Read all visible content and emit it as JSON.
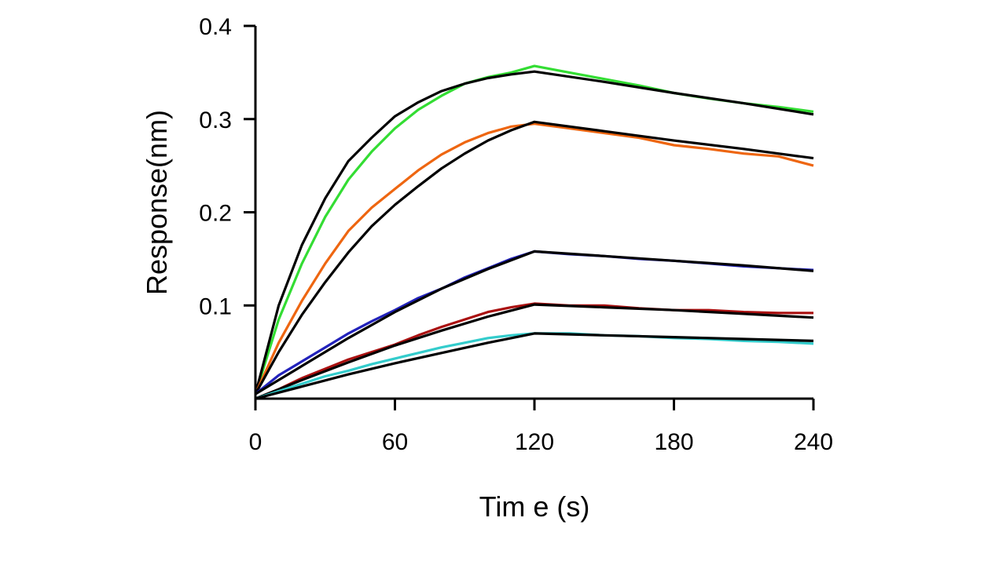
{
  "chart_data": {
    "type": "line",
    "xlabel": "Tim e (s)",
    "ylabel": "Response(nm)",
    "xlim": [
      0,
      240
    ],
    "ylim": [
      0,
      0.4
    ],
    "x_ticks": [
      0,
      60,
      120,
      180,
      240
    ],
    "x_tick_labels": [
      "0",
      "60",
      "120",
      "180",
      "240"
    ],
    "y_ticks": [
      0.1,
      0.2,
      0.3,
      0.4
    ],
    "y_tick_labels": [
      "0.1",
      "0.2",
      "0.3",
      "0.4"
    ],
    "grid": false,
    "series": [
      {
        "color": "#33dd33",
        "x": [
          0,
          10,
          20,
          30,
          40,
          50,
          60,
          70,
          80,
          90,
          100,
          110,
          120,
          135,
          150,
          165,
          180,
          195,
          210,
          225,
          240
        ],
        "values": [
          0.005,
          0.085,
          0.145,
          0.195,
          0.235,
          0.265,
          0.29,
          0.31,
          0.325,
          0.338,
          0.345,
          0.35,
          0.357,
          0.35,
          0.343,
          0.336,
          0.328,
          0.322,
          0.317,
          0.313,
          0.308
        ],
        "fit": {
          "x": [
            0,
            10,
            20,
            30,
            40,
            50,
            60,
            70,
            80,
            90,
            100,
            110,
            120,
            150,
            180,
            210,
            240
          ],
          "values": [
            0.005,
            0.1,
            0.165,
            0.215,
            0.255,
            0.28,
            0.303,
            0.318,
            0.33,
            0.338,
            0.344,
            0.348,
            0.351,
            0.34,
            0.328,
            0.317,
            0.305
          ]
        }
      },
      {
        "color": "#ee6611",
        "x": [
          0,
          10,
          20,
          30,
          40,
          50,
          60,
          70,
          80,
          90,
          100,
          110,
          120,
          135,
          150,
          165,
          180,
          195,
          210,
          225,
          240
        ],
        "values": [
          0.005,
          0.06,
          0.105,
          0.145,
          0.18,
          0.205,
          0.225,
          0.245,
          0.262,
          0.275,
          0.285,
          0.292,
          0.295,
          0.29,
          0.285,
          0.28,
          0.272,
          0.268,
          0.263,
          0.26,
          0.25
        ],
        "fit": {
          "x": [
            0,
            10,
            20,
            30,
            40,
            50,
            60,
            70,
            80,
            90,
            100,
            110,
            120,
            150,
            180,
            210,
            240
          ],
          "values": [
            0.005,
            0.05,
            0.09,
            0.125,
            0.157,
            0.185,
            0.208,
            0.228,
            0.247,
            0.263,
            0.277,
            0.288,
            0.297,
            0.287,
            0.277,
            0.268,
            0.258
          ]
        }
      },
      {
        "color": "#2222bb",
        "x": [
          0,
          10,
          20,
          30,
          40,
          50,
          60,
          70,
          80,
          90,
          100,
          110,
          120,
          135,
          150,
          165,
          180,
          195,
          210,
          225,
          240
        ],
        "values": [
          0.005,
          0.025,
          0.04,
          0.055,
          0.07,
          0.083,
          0.095,
          0.108,
          0.118,
          0.13,
          0.14,
          0.15,
          0.158,
          0.155,
          0.153,
          0.15,
          0.148,
          0.145,
          0.142,
          0.14,
          0.138
        ],
        "fit": {
          "x": [
            0,
            20,
            40,
            60,
            80,
            100,
            120,
            150,
            180,
            210,
            240
          ],
          "values": [
            0.005,
            0.035,
            0.065,
            0.093,
            0.118,
            0.139,
            0.158,
            0.153,
            0.148,
            0.143,
            0.137
          ]
        }
      },
      {
        "color": "#aa1111",
        "x": [
          0,
          10,
          20,
          30,
          40,
          50,
          60,
          70,
          80,
          90,
          100,
          110,
          120,
          135,
          150,
          165,
          180,
          195,
          210,
          225,
          240
        ],
        "values": [
          0.0,
          0.01,
          0.022,
          0.032,
          0.042,
          0.05,
          0.058,
          0.068,
          0.077,
          0.085,
          0.093,
          0.098,
          0.102,
          0.1,
          0.1,
          0.097,
          0.095,
          0.095,
          0.093,
          0.092,
          0.092
        ],
        "fit": {
          "x": [
            0,
            20,
            40,
            60,
            80,
            100,
            120,
            150,
            180,
            210,
            240
          ],
          "values": [
            0.0,
            0.02,
            0.039,
            0.057,
            0.073,
            0.088,
            0.101,
            0.098,
            0.095,
            0.091,
            0.087
          ]
        }
      },
      {
        "color": "#33cccc",
        "x": [
          0,
          10,
          20,
          30,
          40,
          50,
          60,
          70,
          80,
          90,
          100,
          110,
          120,
          135,
          150,
          165,
          180,
          195,
          210,
          225,
          240
        ],
        "values": [
          0.0,
          0.008,
          0.016,
          0.024,
          0.03,
          0.037,
          0.043,
          0.049,
          0.055,
          0.06,
          0.065,
          0.068,
          0.07,
          0.07,
          0.068,
          0.067,
          0.065,
          0.064,
          0.062,
          0.061,
          0.059
        ],
        "fit": {
          "x": [
            0,
            20,
            40,
            60,
            80,
            100,
            120,
            150,
            180,
            210,
            240
          ],
          "values": [
            0.0,
            0.013,
            0.026,
            0.038,
            0.049,
            0.06,
            0.07,
            0.068,
            0.066,
            0.064,
            0.062
          ]
        }
      }
    ]
  }
}
